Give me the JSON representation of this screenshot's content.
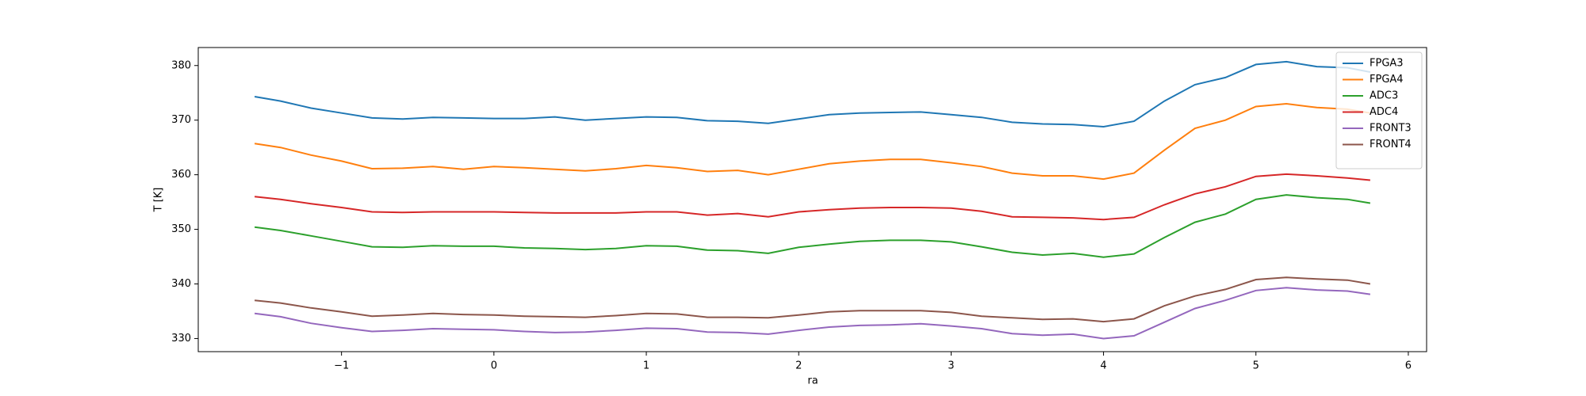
{
  "chart_data": {
    "type": "line",
    "x_label": "ra",
    "y_label": "T [K]",
    "x": [
      -1.57,
      -1.4,
      -1.2,
      -1.0,
      -0.8,
      -0.6,
      -0.4,
      -0.2,
      0,
      0.2,
      0.4,
      0.6,
      0.8,
      1.0,
      1.2,
      1.4,
      1.6,
      1.8,
      2.0,
      2.2,
      2.4,
      2.6,
      2.8,
      3.0,
      3.2,
      3.4,
      3.6,
      3.8,
      4.0,
      4.2,
      4.4,
      4.6,
      4.8,
      5.0,
      5.2,
      5.4,
      5.6,
      5.75
    ],
    "series": [
      {
        "name": "FPGA3",
        "color": "#1f77b4",
        "values": [
          374.3,
          373.5,
          372.2,
          371.3,
          370.4,
          370.2,
          370.5,
          370.4,
          370.3,
          370.3,
          370.6,
          370.0,
          370.3,
          370.6,
          370.5,
          369.9,
          369.8,
          369.4,
          370.2,
          371.0,
          371.3,
          371.4,
          371.5,
          371.0,
          370.5,
          369.6,
          369.3,
          369.2,
          368.8,
          369.8,
          373.5,
          376.5,
          377.8,
          380.2,
          380.7,
          379.8,
          379.6,
          378.8
        ]
      },
      {
        "name": "FPGA4",
        "color": "#ff7f0e",
        "values": [
          365.7,
          365.0,
          363.6,
          362.5,
          361.1,
          361.2,
          361.5,
          361.0,
          361.5,
          361.3,
          361.0,
          360.7,
          361.1,
          361.7,
          361.3,
          360.6,
          360.8,
          360.0,
          361.0,
          362.0,
          362.5,
          362.8,
          362.8,
          362.2,
          361.5,
          360.3,
          359.8,
          359.8,
          359.2,
          360.3,
          364.5,
          368.5,
          370.0,
          372.5,
          373.0,
          372.3,
          372.0,
          371.3
        ]
      },
      {
        "name": "ADC3",
        "color": "#2ca02c",
        "values": [
          350.4,
          349.8,
          348.8,
          347.8,
          346.8,
          346.7,
          347.0,
          346.9,
          346.9,
          346.6,
          346.5,
          346.3,
          346.5,
          347.0,
          346.9,
          346.2,
          346.1,
          345.6,
          346.7,
          347.3,
          347.8,
          348.0,
          348.0,
          347.7,
          346.8,
          345.8,
          345.3,
          345.6,
          344.9,
          345.5,
          348.5,
          351.3,
          352.8,
          355.5,
          356.3,
          355.8,
          355.5,
          354.8
        ]
      },
      {
        "name": "ADC4",
        "color": "#d62728",
        "values": [
          356.0,
          355.5,
          354.7,
          354.0,
          353.2,
          353.1,
          353.2,
          353.2,
          353.2,
          353.1,
          353.0,
          353.0,
          353.0,
          353.2,
          353.2,
          352.6,
          352.9,
          352.3,
          353.2,
          353.6,
          353.9,
          354.0,
          354.0,
          353.9,
          353.3,
          352.3,
          352.2,
          352.1,
          351.8,
          352.2,
          354.5,
          356.5,
          357.8,
          359.7,
          360.1,
          359.8,
          359.4,
          359.0
        ]
      },
      {
        "name": "FRONT3",
        "color": "#9467bd",
        "values": [
          334.6,
          334.0,
          332.8,
          332.0,
          331.3,
          331.5,
          331.8,
          331.7,
          331.6,
          331.3,
          331.1,
          331.2,
          331.5,
          331.9,
          331.8,
          331.2,
          331.1,
          330.8,
          331.5,
          332.1,
          332.4,
          332.5,
          332.7,
          332.3,
          331.8,
          330.9,
          330.6,
          330.8,
          330.0,
          330.5,
          333.0,
          335.5,
          337.0,
          338.8,
          339.3,
          338.9,
          338.7,
          338.1
        ]
      },
      {
        "name": "FRONT4",
        "color": "#8c564b",
        "values": [
          337.0,
          336.5,
          335.6,
          334.9,
          334.1,
          334.3,
          334.6,
          334.4,
          334.3,
          334.1,
          334.0,
          333.9,
          334.2,
          334.6,
          334.5,
          333.9,
          333.9,
          333.8,
          334.3,
          334.9,
          335.1,
          335.1,
          335.1,
          334.8,
          334.1,
          333.8,
          333.5,
          333.6,
          333.1,
          333.6,
          336.0,
          337.8,
          339.0,
          340.8,
          341.2,
          340.9,
          340.7,
          340.0
        ]
      }
    ],
    "xlim": [
      -1.94,
      6.12
    ],
    "ylim": [
      327.6,
      383.3
    ],
    "xticks": [
      {
        "value": -1,
        "label": "−1"
      },
      0,
      1,
      2,
      3,
      4,
      5,
      6
    ],
    "yticks": [
      330,
      340,
      350,
      360,
      370,
      380
    ],
    "legend": "upper right"
  }
}
